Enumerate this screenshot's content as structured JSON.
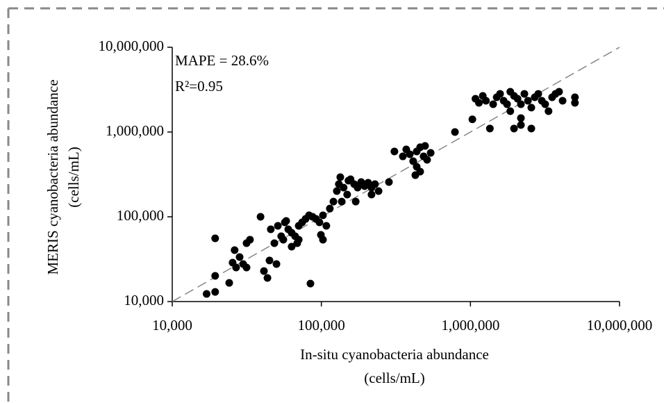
{
  "chart_data": {
    "type": "scatter",
    "xlabel": [
      "In-situ cyanobacteria abundance",
      "(cells/mL)"
    ],
    "ylabel": [
      "MERIS cyanobacteria abundance",
      "(cells/mL)"
    ],
    "annotations": [
      "MAPE = 28.6%",
      "R²=0.95"
    ],
    "xscale": "log",
    "yscale": "log",
    "color": "#000000",
    "xlim": [
      10000,
      10000000
    ],
    "ylim": [
      10000,
      10000000
    ],
    "xticks": [
      {
        "value": 10000,
        "label": "10,000"
      },
      {
        "value": 100000,
        "label": "100,000"
      },
      {
        "value": 1000000,
        "label": "1,000,000"
      },
      {
        "value": 10000000,
        "label": "10,000,000"
      }
    ],
    "yticks": [
      {
        "value": 10000,
        "label": "10,000"
      },
      {
        "value": 100000,
        "label": "100,000"
      },
      {
        "value": 1000000,
        "label": "1,000,000"
      },
      {
        "value": 10000000,
        "label": "10,000,000"
      }
    ],
    "series": [
      {
        "name": null,
        "color": "#000000",
        "x": [
          17000,
          19400,
          19400,
          19400,
          24100,
          25400,
          26200,
          26800,
          28300,
          29900,
          31500,
          31500,
          33200,
          39100,
          41200,
          43500,
          44900,
          45800,
          48400,
          50000,
          51100,
          53800,
          55600,
          56900,
          58100,
          60000,
          63200,
          66700,
          68900,
          70500,
          74300,
          78400,
          82700,
          87300,
          92000,
          97100,
          99300,
          102500,
          84500,
          108000,
          102500,
          63200,
          70500,
          114000,
          120500,
          127000,
          131000,
          134000,
          137000,
          141000,
          149000,
          152000,
          157000,
          166000,
          170000,
          175000,
          185000,
          195000,
          206000,
          217000,
          229000,
          242000,
          217000,
          284000,
          309000,
          352000,
          371000,
          392000,
          413000,
          436000,
          436000,
          460000,
          485000,
          496000,
          512000,
          541000,
          427000,
          460000,
          787000,
          1030000,
          1080000,
          1140000,
          1210000,
          1270000,
          1350000,
          1420000,
          1500000,
          1580000,
          1670000,
          1760000,
          1850000,
          1960000,
          2070000,
          2180000,
          2300000,
          2430000,
          2560000,
          2700000,
          2850000,
          3010000,
          3170000,
          3340000,
          3530000,
          3720000,
          3930000,
          4150000,
          5020000,
          5020000,
          1960000,
          2180000,
          2560000,
          2180000,
          1850000
        ],
        "values": [
          12300,
          13000,
          20100,
          55700,
          16600,
          28800,
          40400,
          25200,
          33500,
          27700,
          25200,
          48800,
          53700,
          100000,
          22900,
          19000,
          30500,
          71200,
          48800,
          27700,
          78200,
          58900,
          53700,
          86000,
          89300,
          71200,
          64800,
          58900,
          48800,
          78200,
          86000,
          94400,
          104000,
          100000,
          94400,
          86000,
          61200,
          53700,
          16300,
          78200,
          104000,
          44400,
          53700,
          125000,
          151000,
          201000,
          243000,
          293000,
          151000,
          221000,
          183000,
          267000,
          277000,
          243000,
          151000,
          221000,
          257000,
          230000,
          252000,
          221000,
          243000,
          201000,
          183000,
          257000,
          589000,
          516000,
          624000,
          547000,
          453000,
          389000,
          589000,
          661000,
          516000,
          685000,
          470000,
          568000,
          310000,
          341000,
          1000000,
          1410000,
          2470000,
          2210000,
          2670000,
          2340000,
          1100000,
          2130000,
          2570000,
          2820000,
          2340000,
          2130000,
          2990000,
          2670000,
          2470000,
          2130000,
          2820000,
          2340000,
          1940000,
          2570000,
          2820000,
          2340000,
          2130000,
          1760000,
          2570000,
          2820000,
          2990000,
          2340000,
          2570000,
          2210000,
          1100000,
          1210000,
          1100000,
          1460000,
          1760000
        ]
      }
    ]
  }
}
